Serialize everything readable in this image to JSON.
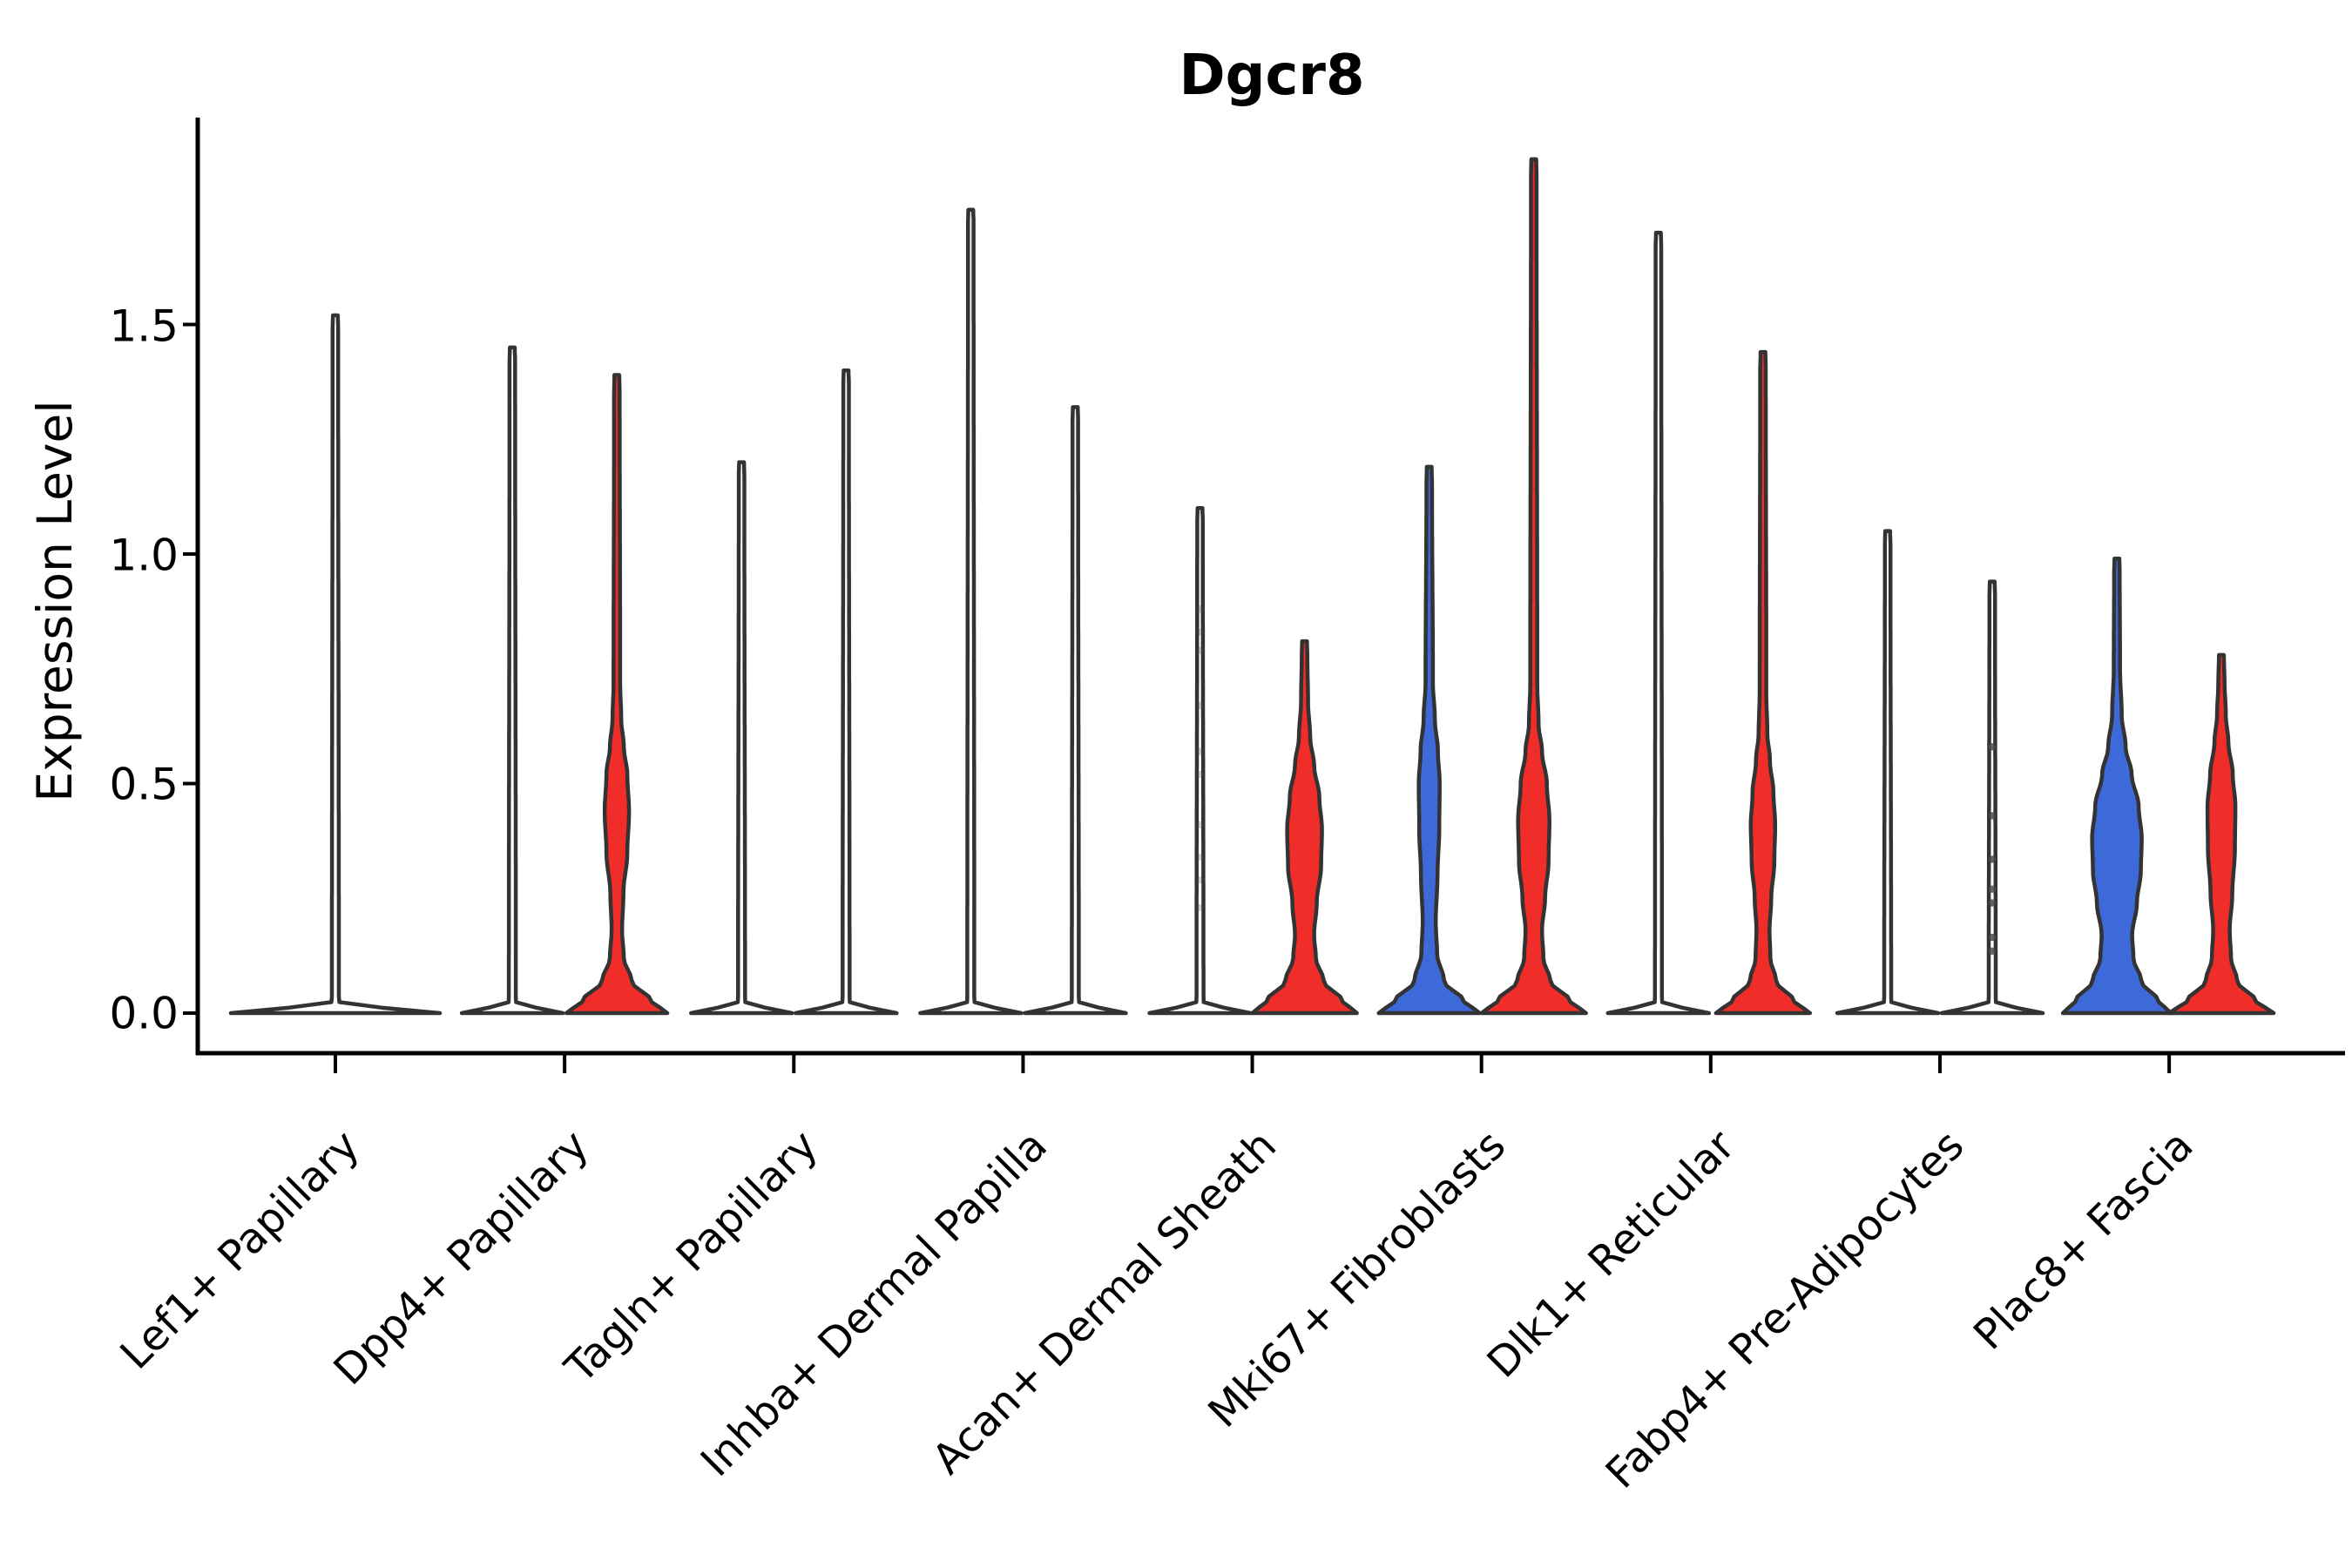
{
  "title": "Dgcr8",
  "axes": {
    "y_label": "Expression Level",
    "y_ticks": [
      "0.0",
      "0.5",
      "1.0",
      "1.5"
    ],
    "y_tick_values": [
      0.0,
      0.5,
      1.0,
      1.5
    ]
  },
  "colors": {
    "violin_blue": "#3E69D8",
    "violin_red": "#F02D28",
    "violin_outline": "#333333",
    "axis": "#000000",
    "point": "#4a4a4a",
    "background": "#ffffff"
  },
  "chart_data": {
    "type": "violin",
    "title": "Dgcr8",
    "xlabel": "",
    "ylabel": "Expression Level",
    "ylim": [
      0,
      1.95
    ],
    "yticks": [
      0,
      0.5,
      1,
      1.5
    ],
    "grid": false,
    "legend_position": "none",
    "categories": [
      "Lef1+ Papillary",
      "Dpp4+ Papillary",
      "Tagln+ Papillary",
      "Inhba+ Dermal Papilla",
      "Acan+ Dermal Sheath",
      "Mki67+ Fibroblasts",
      "Dlk1+ Reticular",
      "Fabp4+ Pre-Adipocytes",
      "Plac8+ Fascia"
    ],
    "groups": [
      {
        "category": "Lef1+ Papillary",
        "violins": [
          {
            "side": "center",
            "fill": "#ffffff",
            "max_expression": 1.52,
            "wide_single": true,
            "profile_v_hw": [
              [
                0,
                120
              ],
              [
                0.01,
                55
              ],
              [
                0.025,
                4
              ],
              [
                1.49,
                3.2
              ],
              [
                1.52,
                2.8
              ]
            ],
            "points": []
          }
        ]
      },
      {
        "category": "Dpp4+ Papillary",
        "violins": [
          {
            "side": "left",
            "fill": "#ffffff",
            "max_expression": 1.45,
            "profile_v_hw": [
              [
                0,
                58
              ],
              [
                0.01,
                28
              ],
              [
                0.025,
                4
              ],
              [
                1.42,
                3.2
              ],
              [
                1.45,
                2.8
              ]
            ],
            "points": []
          },
          {
            "side": "right",
            "fill": "#F02D28",
            "max_expression": 1.39,
            "profile_v_hw": [
              [
                0,
                58
              ],
              [
                0.025,
                40
              ],
              [
                0.07,
                17
              ],
              [
                0.12,
                8
              ],
              [
                0.18,
                6
              ],
              [
                0.26,
                7.5
              ],
              [
                0.35,
                12
              ],
              [
                0.44,
                14
              ],
              [
                0.52,
                12
              ],
              [
                0.58,
                8
              ],
              [
                0.64,
                5
              ],
              [
                0.72,
                3.8
              ],
              [
                1.35,
                3.2
              ],
              [
                1.39,
                2.8
              ]
            ],
            "points": []
          }
        ]
      },
      {
        "category": "Tagln+ Papillary",
        "violins": [
          {
            "side": "left",
            "fill": "#ffffff",
            "max_expression": 1.2,
            "profile_v_hw": [
              [
                0,
                58
              ],
              [
                0.01,
                28
              ],
              [
                0.025,
                4
              ],
              [
                1.17,
                3.2
              ],
              [
                1.2,
                2.8
              ]
            ],
            "points": []
          },
          {
            "side": "right",
            "fill": "#ffffff",
            "max_expression": 1.4,
            "profile_v_hw": [
              [
                0,
                58
              ],
              [
                0.01,
                28
              ],
              [
                0.025,
                4
              ],
              [
                1.37,
                3.2
              ],
              [
                1.4,
                2.8
              ]
            ],
            "points": []
          }
        ]
      },
      {
        "category": "Inhba+ Dermal Papilla",
        "violins": [
          {
            "side": "left",
            "fill": "#ffffff",
            "max_expression": 1.75,
            "profile_v_hw": [
              [
                0,
                58
              ],
              [
                0.01,
                28
              ],
              [
                0.025,
                4
              ],
              [
                1.72,
                3.2
              ],
              [
                1.75,
                2.8
              ]
            ],
            "points": []
          },
          {
            "side": "right",
            "fill": "#ffffff",
            "max_expression": 1.32,
            "profile_v_hw": [
              [
                0,
                58
              ],
              [
                0.01,
                28
              ],
              [
                0.025,
                4
              ],
              [
                1.29,
                3.2
              ],
              [
                1.32,
                2.8
              ]
            ],
            "points": []
          }
        ]
      },
      {
        "category": "Acan+ Dermal Sheath",
        "violins": [
          {
            "side": "left",
            "fill": "#ffffff",
            "max_expression": 1.1,
            "profile_v_hw": [
              [
                0,
                58
              ],
              [
                0.01,
                28
              ],
              [
                0.025,
                4
              ],
              [
                1.07,
                3.2
              ],
              [
                1.1,
                2.8
              ]
            ],
            "points": [
              0.88,
              0.83,
              0.79,
              0.67,
              0.57,
              0.52,
              0.41,
              0.34,
              0.29,
              0.23
            ],
            "point_opacity": 0.25
          },
          {
            "side": "right",
            "fill": "#F02D28",
            "max_expression": 0.81,
            "profile_v_hw": [
              [
                0,
                60
              ],
              [
                0.025,
                44
              ],
              [
                0.07,
                22
              ],
              [
                0.12,
                13
              ],
              [
                0.17,
                11
              ],
              [
                0.24,
                14
              ],
              [
                0.32,
                19
              ],
              [
                0.4,
                20
              ],
              [
                0.47,
                17
              ],
              [
                0.54,
                11
              ],
              [
                0.6,
                6.5
              ],
              [
                0.68,
                4
              ],
              [
                0.78,
                3.2
              ],
              [
                0.81,
                2.8
              ]
            ],
            "points": []
          }
        ]
      },
      {
        "category": "Mki67+ Fibroblasts",
        "violins": [
          {
            "side": "left",
            "fill": "#3E69D8",
            "max_expression": 1.19,
            "profile_v_hw": [
              [
                0,
                58
              ],
              [
                0.025,
                40
              ],
              [
                0.07,
                17
              ],
              [
                0.13,
                9
              ],
              [
                0.2,
                7.5
              ],
              [
                0.3,
                9.5
              ],
              [
                0.4,
                11.5
              ],
              [
                0.5,
                12
              ],
              [
                0.57,
                10
              ],
              [
                0.64,
                6.5
              ],
              [
                0.72,
                4.2
              ],
              [
                1.15,
                3.2
              ],
              [
                1.19,
                2.8
              ]
            ],
            "points": []
          },
          {
            "side": "right",
            "fill": "#F02D28",
            "max_expression": 1.86,
            "profile_v_hw": [
              [
                0,
                60
              ],
              [
                0.025,
                42
              ],
              [
                0.07,
                19
              ],
              [
                0.12,
                11
              ],
              [
                0.18,
                9.5
              ],
              [
                0.25,
                13
              ],
              [
                0.33,
                17
              ],
              [
                0.42,
                18
              ],
              [
                0.5,
                15
              ],
              [
                0.57,
                9.5
              ],
              [
                0.63,
                5.5
              ],
              [
                0.72,
                4
              ],
              [
                1.82,
                3.2
              ],
              [
                1.86,
                2.8
              ]
            ],
            "points": []
          }
        ]
      },
      {
        "category": "Dlk1+ Reticular",
        "violins": [
          {
            "side": "left",
            "fill": "#ffffff",
            "max_expression": 1.7,
            "profile_v_hw": [
              [
                0,
                58
              ],
              [
                0.01,
                28
              ],
              [
                0.025,
                4
              ],
              [
                1.67,
                3.2
              ],
              [
                1.7,
                2.8
              ]
            ],
            "points": []
          },
          {
            "side": "right",
            "fill": "#F02D28",
            "max_expression": 1.44,
            "profile_v_hw": [
              [
                0,
                54
              ],
              [
                0.025,
                36
              ],
              [
                0.07,
                15
              ],
              [
                0.12,
                8.5
              ],
              [
                0.18,
                7.5
              ],
              [
                0.25,
                9.5
              ],
              [
                0.33,
                13
              ],
              [
                0.41,
                14
              ],
              [
                0.48,
                12
              ],
              [
                0.55,
                8
              ],
              [
                0.61,
                5
              ],
              [
                0.7,
                3.8
              ],
              [
                1.4,
                3.2
              ],
              [
                1.44,
                2.8
              ]
            ],
            "points": []
          }
        ]
      },
      {
        "category": "Fabp4+ Pre-Adipocytes",
        "violins": [
          {
            "side": "left",
            "fill": "#ffffff",
            "max_expression": 1.05,
            "profile_v_hw": [
              [
                0,
                58
              ],
              [
                0.01,
                28
              ],
              [
                0.025,
                4
              ],
              [
                1.02,
                3.2
              ],
              [
                1.05,
                2.8
              ]
            ],
            "points": []
          },
          {
            "side": "right",
            "fill": "#ffffff",
            "max_expression": 0.94,
            "profile_v_hw": [
              [
                0,
                58
              ],
              [
                0.01,
                28
              ],
              [
                0.025,
                4
              ],
              [
                0.91,
                3.2
              ],
              [
                0.94,
                2.8
              ]
            ],
            "points": [
              0.58,
              0.43,
              0.335,
              0.27,
              0.24,
              0.165,
              0.135
            ],
            "point_opacity": 0.85
          }
        ]
      },
      {
        "category": "Plac8+ Fascia",
        "violins": [
          {
            "side": "left",
            "fill": "#3E69D8",
            "max_expression": 0.99,
            "profile_v_hw": [
              [
                0,
                62
              ],
              [
                0.025,
                48
              ],
              [
                0.07,
                28
              ],
              [
                0.12,
                19
              ],
              [
                0.17,
                17.5
              ],
              [
                0.24,
                23
              ],
              [
                0.31,
                27.5
              ],
              [
                0.38,
                28.5
              ],
              [
                0.45,
                25
              ],
              [
                0.52,
                17
              ],
              [
                0.58,
                10
              ],
              [
                0.65,
                5.5
              ],
              [
                0.75,
                3.6
              ],
              [
                0.96,
                3.2
              ],
              [
                0.99,
                2.8
              ]
            ],
            "points": []
          },
          {
            "side": "right",
            "fill": "#F02D28",
            "max_expression": 0.78,
            "profile_v_hw": [
              [
                0,
                60
              ],
              [
                0.025,
                40
              ],
              [
                0.07,
                18
              ],
              [
                0.12,
                11
              ],
              [
                0.18,
                9.5
              ],
              [
                0.26,
                12.5
              ],
              [
                0.36,
                15.5
              ],
              [
                0.45,
                16
              ],
              [
                0.52,
                13
              ],
              [
                0.59,
                8
              ],
              [
                0.65,
                5
              ],
              [
                0.72,
                3.6
              ],
              [
                0.78,
                2.8
              ]
            ],
            "points": []
          }
        ]
      }
    ]
  }
}
